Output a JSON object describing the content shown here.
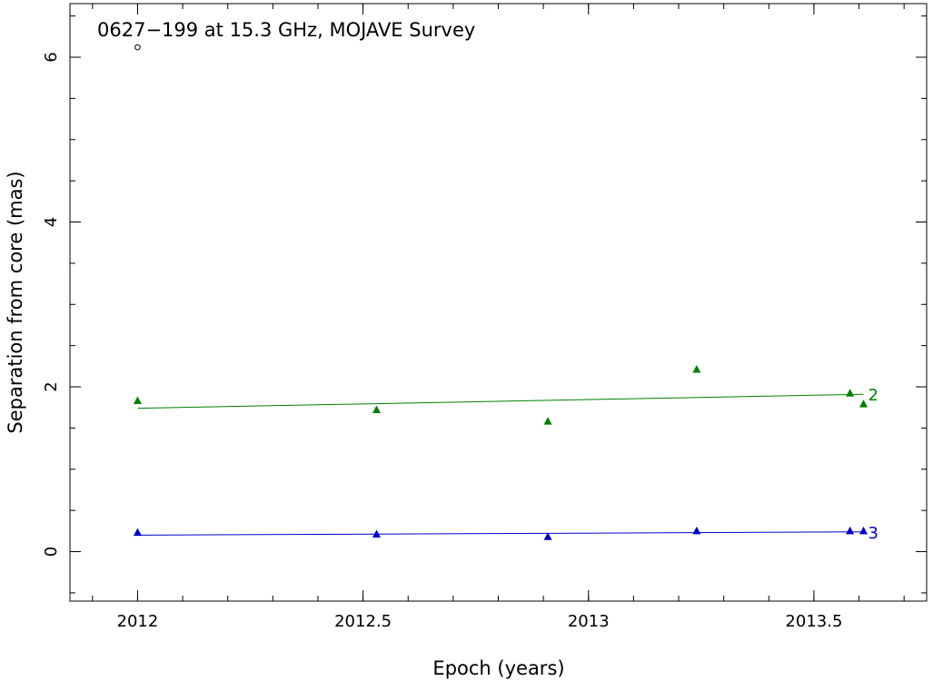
{
  "chart_data": {
    "type": "scatter",
    "title": "0627−199 at 15.3 GHz, MOJAVE Survey",
    "xlabel": "Epoch (years)",
    "ylabel": "Separation from core (mas)",
    "xlim": [
      2011.85,
      2013.75
    ],
    "ylim": [
      -0.6,
      6.65
    ],
    "x_ticks": [
      2012,
      2012.5,
      2013,
      2013.5
    ],
    "x_tick_labels": [
      "2012",
      "2012.5",
      "2013",
      "2013.5"
    ],
    "y_ticks": [
      0,
      2,
      4,
      6
    ],
    "y_tick_labels": [
      "0",
      "2",
      "4",
      "6"
    ],
    "grid": false,
    "series": [
      {
        "name": "2",
        "color": "#008000",
        "marker": "triangle",
        "x": [
          2012.0,
          2012.53,
          2012.91,
          2013.24,
          2013.58,
          2013.61
        ],
        "y": [
          1.83,
          1.72,
          1.58,
          2.21,
          1.92,
          1.79
        ],
        "fit": {
          "x": [
            2012.0,
            2013.61
          ],
          "y": [
            1.74,
            1.91
          ],
          "color": "#008000"
        }
      },
      {
        "name": "3",
        "color": "#0000cc",
        "marker": "triangle",
        "x": [
          2012.0,
          2012.53,
          2012.91,
          2013.24,
          2013.58,
          2013.61
        ],
        "y": [
          0.23,
          0.21,
          0.18,
          0.25,
          0.25,
          0.25
        ],
        "fit": {
          "x": [
            2012.0,
            2013.61
          ],
          "y": [
            0.2,
            0.24
          ],
          "color": "#0000cc"
        }
      },
      {
        "name": "",
        "color": "#000000",
        "marker": "open-circle",
        "x": [
          2012.0
        ],
        "y": [
          6.12
        ]
      }
    ]
  }
}
